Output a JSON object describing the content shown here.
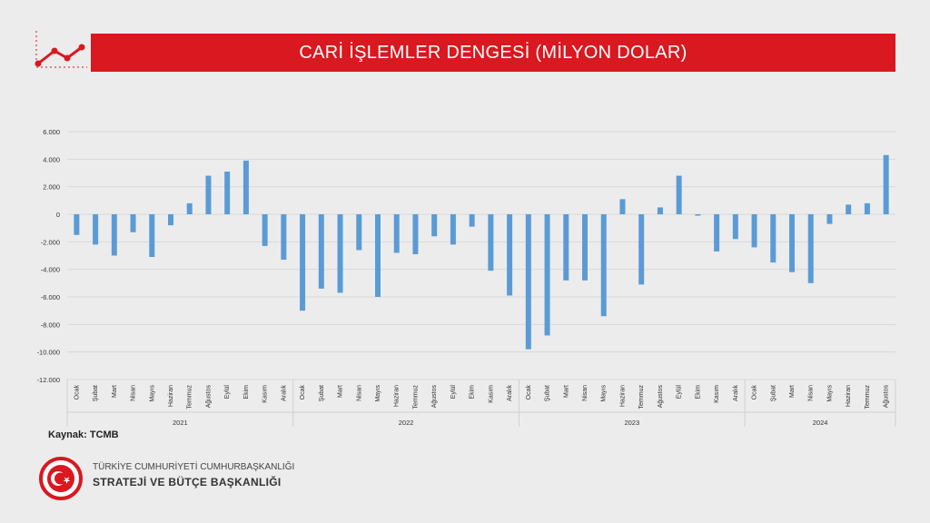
{
  "title": "CARİ İŞLEMLER DENGESİ (MİLYON DOLAR)",
  "source_label": "Kaynak: TCMB",
  "org": {
    "line1": "TÜRKİYE CUMHURİYETİ CUMHURBAŞKANLIĞI",
    "line2": "STRATEJİ VE BÜTÇE BAŞKANLIĞI"
  },
  "icons": {
    "header": "trend-line-icon",
    "emblem": "turkey-emblem-icon"
  },
  "colors": {
    "bar": "#5b9bd5",
    "title_bg": "#d9181f",
    "grid": "#d9d9d9"
  },
  "chart_data": {
    "type": "bar",
    "ylim": [
      -12000,
      6000
    ],
    "yticks": [
      "6.000",
      "4.000",
      "2.000",
      "0",
      "-2.000",
      "-4.000",
      "-6.000",
      "-8.000",
      "-10.000",
      "-12.000"
    ],
    "grid": true,
    "groups": [
      {
        "label": "2021",
        "count": 12
      },
      {
        "label": "2022",
        "count": 12
      },
      {
        "label": "2023",
        "count": 12
      },
      {
        "label": "2024",
        "count": 8
      }
    ],
    "categories": [
      "Ocak",
      "Şubat",
      "Mart",
      "Nisan",
      "Mayıs",
      "Haziran",
      "Temmuz",
      "Ağustos",
      "Eylül",
      "Ekim",
      "Kasım",
      "Aralık",
      "Ocak",
      "Şubat",
      "Mart",
      "Nisan",
      "Mayıs",
      "Haziran",
      "Temmuz",
      "Ağustos",
      "Eylül",
      "Ekim",
      "Kasım",
      "Aralık",
      "Ocak",
      "Şubat",
      "Mart",
      "Nisan",
      "Mayıs",
      "Haziran",
      "Temmuz",
      "Ağustos",
      "Eylül",
      "Ekim",
      "Kasım",
      "Aralık",
      "Ocak",
      "Şubat",
      "Mart",
      "Nisan",
      "Mayıs",
      "Haziran",
      "Temmuz",
      "Ağustos"
    ],
    "values": [
      -1500,
      -2200,
      -3000,
      -1300,
      -3100,
      -800,
      800,
      2800,
      3100,
      3900,
      -2300,
      -3300,
      -7000,
      -5400,
      -5700,
      -2600,
      -6000,
      -2800,
      -2900,
      -1600,
      -2200,
      -900,
      -4100,
      -5900,
      -9800,
      -8800,
      -4800,
      -4800,
      -7400,
      1100,
      -5100,
      500,
      2800,
      -100,
      -2700,
      -1800,
      -2400,
      -3500,
      -4200,
      -5000,
      -700,
      700,
      800,
      4300
    ]
  }
}
